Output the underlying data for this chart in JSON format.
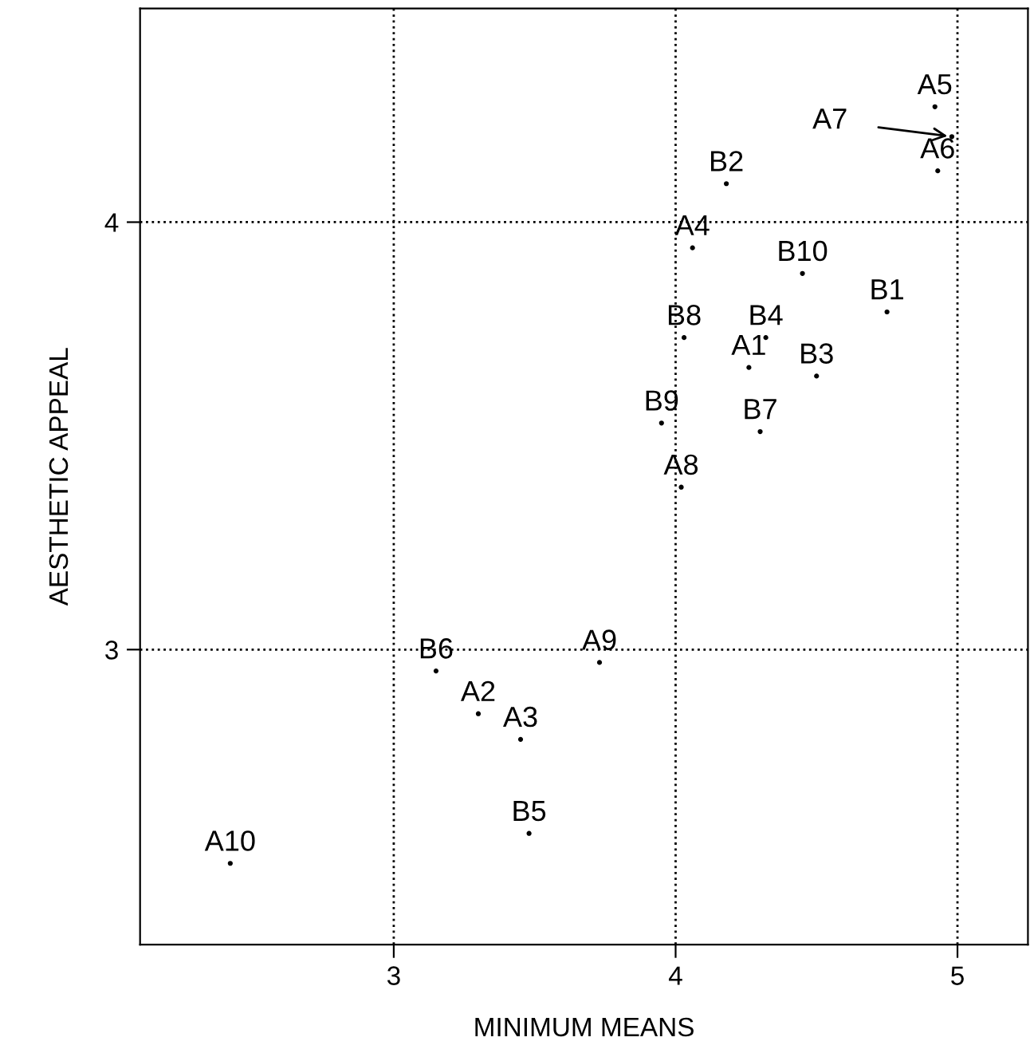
{
  "chart_data": {
    "type": "scatter",
    "xlabel": "MINIMUM MEANS",
    "ylabel": "AESTHETIC APPEAL",
    "xlim": [
      2.1,
      5.25
    ],
    "ylim": [
      2.31,
      4.5
    ],
    "xticks": [
      3,
      4,
      5
    ],
    "yticks": [
      3,
      4
    ],
    "grid": true,
    "marker": "circle",
    "series": [
      {
        "color": "#000000",
        "x": [
          4.92,
          4.93,
          4.18,
          4.06,
          4.45,
          4.75,
          4.03,
          4.32,
          4.26,
          4.5,
          3.95,
          4.3,
          4.02,
          3.73,
          3.15,
          3.3,
          3.45,
          3.48,
          2.42,
          4.98
        ],
        "values": [
          4.27,
          4.12,
          4.09,
          3.94,
          3.88,
          3.79,
          3.73,
          3.73,
          3.66,
          3.64,
          3.53,
          3.51,
          3.38,
          2.97,
          2.95,
          2.85,
          2.79,
          2.57,
          2.5,
          4.2
        ],
        "value_labels": [
          "A5",
          "A6",
          "B2",
          "A4",
          "B10",
          "B1",
          "B8",
          "B4",
          "A1",
          "B3",
          "B9",
          "B7",
          "A8",
          "A9",
          "B6",
          "A2",
          "A3",
          "B5",
          "A10",
          null
        ]
      }
    ],
    "annotations": [
      "A7"
    ]
  }
}
